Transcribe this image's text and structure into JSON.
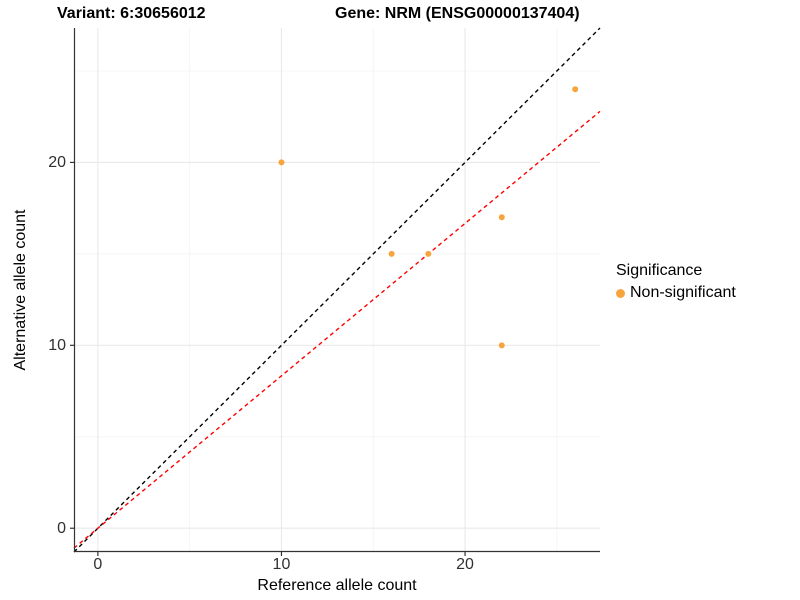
{
  "titles": {
    "variant": "Variant: 6:30656012",
    "gene": "Gene: NRM (ENSG00000137404)"
  },
  "axes": {
    "x": {
      "label": "Reference allele count",
      "ticks": [
        0,
        10,
        20
      ],
      "minor_ticks": [
        5,
        15,
        25
      ],
      "range": [
        -1.3,
        27.35
      ]
    },
    "y": {
      "label": "Alternative allele count",
      "ticks": [
        0,
        10,
        20
      ],
      "minor_ticks": [
        5,
        15,
        25
      ],
      "range": [
        -1.3,
        27.35
      ]
    }
  },
  "legend": {
    "title": "Significance",
    "items": [
      {
        "label": "Non-significant",
        "color": "#F8A43C"
      }
    ]
  },
  "colors": {
    "point_orange": "#F8A43C",
    "identity_line": "#000000",
    "fit_line_red": "#FF0000",
    "axis_line": "#333333",
    "grid_major": "#E9E9E9",
    "grid_minor": "#F4F4F4"
  },
  "chart_data": {
    "type": "scatter",
    "title": "Variant: 6:30656012 | Gene: NRM (ENSG00000137404)",
    "xlabel": "Reference allele count",
    "ylabel": "Alternative allele count",
    "xlim": [
      -1.3,
      27.35
    ],
    "ylim": [
      -1.3,
      27.35
    ],
    "x_ticks": [
      0,
      10,
      20
    ],
    "y_ticks": [
      0,
      10,
      20
    ],
    "x_minor_ticks": [
      5,
      15,
      25
    ],
    "y_minor_ticks": [
      5,
      15,
      25
    ],
    "grid": true,
    "legend_position": "right",
    "series": [
      {
        "name": "Non-significant",
        "color": "#F8A43C",
        "marker": "circle",
        "points": [
          [
            10,
            20
          ],
          [
            16,
            15
          ],
          [
            18,
            15
          ],
          [
            22,
            17
          ],
          [
            22,
            10
          ],
          [
            26,
            24
          ]
        ]
      }
    ],
    "reference_lines": [
      {
        "name": "identity",
        "slope": 1.0,
        "intercept": 0,
        "style": "dashed",
        "color": "#000000"
      },
      {
        "name": "alt-ref-ratio",
        "slope": 0.8333,
        "intercept": 0,
        "style": "dashed",
        "color": "#FF0000"
      }
    ]
  }
}
